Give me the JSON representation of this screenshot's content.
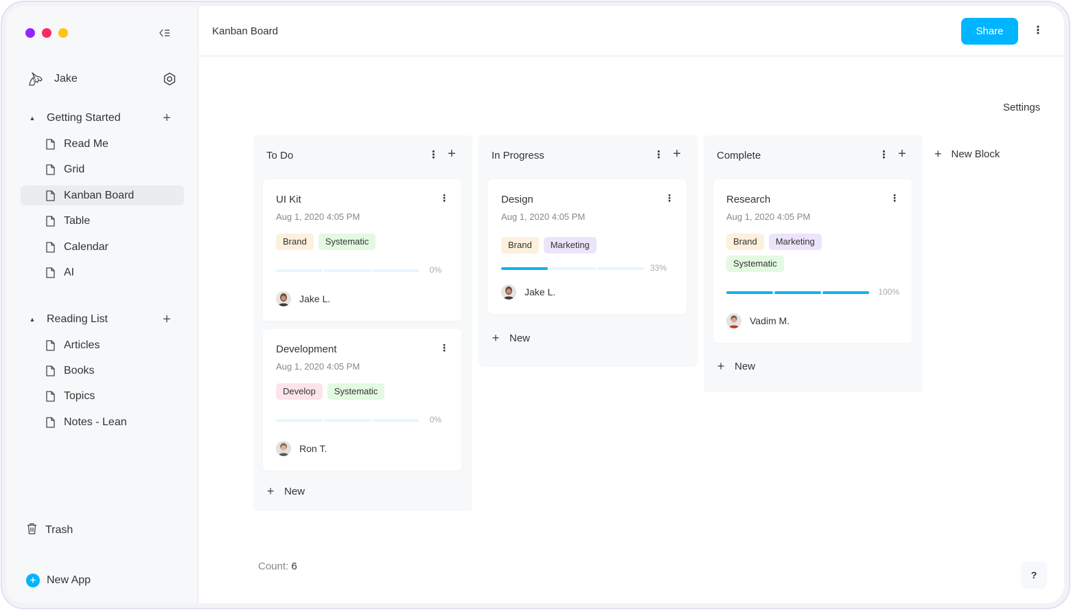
{
  "window": {
    "traffic_lights": [
      "#9327ff",
      "#ff2965",
      "#ffc512"
    ]
  },
  "sidebar": {
    "user": {
      "name": "Jake",
      "avatar_icon": "unicorn-icon"
    },
    "sections": [
      {
        "label": "Getting Started",
        "items": [
          {
            "label": "Read Me"
          },
          {
            "label": "Grid"
          },
          {
            "label": "Kanban Board",
            "active": true
          },
          {
            "label": "Table"
          },
          {
            "label": "Calendar"
          },
          {
            "label": "AI"
          }
        ]
      },
      {
        "label": "Reading List",
        "items": [
          {
            "label": "Articles"
          },
          {
            "label": "Books"
          },
          {
            "label": "Topics"
          },
          {
            "label": "Notes - Lean"
          }
        ]
      }
    ],
    "trash_label": "Trash",
    "new_app_label": "New App"
  },
  "header": {
    "title": "Kanban Board",
    "share_label": "Share",
    "more_label": "⋮"
  },
  "board": {
    "settings_label": "Settings",
    "new_block_label": "New Block",
    "new_label": "New",
    "count_label": "Count:",
    "count_value": "6",
    "help_label": "?",
    "columns": [
      {
        "title": "To Do",
        "cards": [
          {
            "title": "UI Kit",
            "date": "Aug 1, 2020 4:05 PM",
            "tags": [
              {
                "label": "Brand",
                "color": "#fdf0dc"
              },
              {
                "label": "Systematic",
                "color": "#e3f9e2"
              }
            ],
            "progress": 0,
            "progress_label": "0%",
            "assignee": "Jake L."
          },
          {
            "title": "Development",
            "date": "Aug 1, 2020 4:05 PM",
            "tags": [
              {
                "label": "Develop",
                "color": "#fde4ea"
              },
              {
                "label": "Systematic",
                "color": "#e3f9e2"
              }
            ],
            "progress": 0,
            "progress_label": "0%",
            "assignee": "Ron T."
          }
        ]
      },
      {
        "title": "In Progress",
        "cards": [
          {
            "title": "Design",
            "date": "Aug 1, 2020 4:05 PM",
            "tags": [
              {
                "label": "Brand",
                "color": "#fdf0dc"
              },
              {
                "label": "Marketing",
                "color": "#ece4fb"
              }
            ],
            "progress": 0.33,
            "progress_label": "33%",
            "assignee": "Jake L."
          }
        ]
      },
      {
        "title": "Complete",
        "cards": [
          {
            "title": "Research",
            "date": "Aug 1, 2020 4:05 PM",
            "tags": [
              {
                "label": "Brand",
                "color": "#fdf0dc"
              },
              {
                "label": "Marketing",
                "color": "#ece4fb"
              },
              {
                "label": "Systematic",
                "color": "#e3f9e2"
              }
            ],
            "progress": 1.0,
            "progress_label": "100%",
            "assignee": "Vadim M."
          }
        ]
      }
    ]
  }
}
